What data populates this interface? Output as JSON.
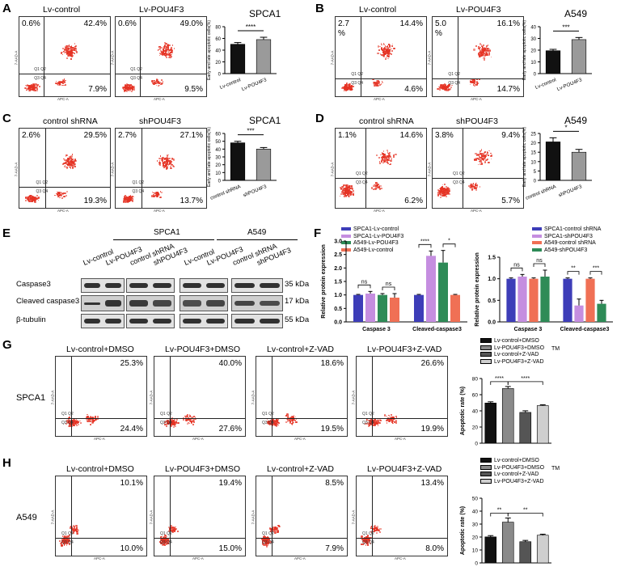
{
  "panels": {
    "A": {
      "letter": "A",
      "flow_titles": [
        "Lv-control",
        "Lv-POU4F3"
      ],
      "quads": [
        {
          "ul": "0.6%",
          "ur": "42.4%",
          "lr": "7.9%"
        },
        {
          "ul": "0.6%",
          "ur": "49.0%",
          "lr": "9.5%"
        }
      ],
      "bar_title": "SPCA1",
      "sig": "****"
    },
    "B": {
      "letter": "B",
      "flow_titles": [
        "Lv-control",
        "Lv-POU4F3"
      ],
      "quads": [
        {
          "ul": "2.7\n%",
          "ur": "14.4%",
          "lr": "4.6%"
        },
        {
          "ul": "5.0\n%",
          "ur": "16.1%",
          "lr": "14.7%"
        }
      ],
      "bar_title": "A549",
      "sig": "***"
    },
    "C": {
      "letter": "C",
      "flow_titles": [
        "control shRNA",
        "shPOU4F3"
      ],
      "quads": [
        {
          "ul": "2.6%",
          "ur": "29.5%",
          "lr": "19.3%"
        },
        {
          "ul": "2.7%",
          "ur": "27.1%",
          "lr": "13.7%"
        }
      ],
      "bar_title": "SPCA1",
      "sig": "***"
    },
    "D": {
      "letter": "D",
      "flow_titles": [
        "control shRNA",
        "shPOU4F3"
      ],
      "quads": [
        {
          "ul": "1.1%",
          "ur": "14.6%",
          "lr": "6.2%"
        },
        {
          "ul": "3.8%",
          "ur": "9.4%",
          "lr": "5.7%"
        }
      ],
      "bar_title": "A549",
      "sig": "*"
    },
    "E": {
      "letter": "E",
      "groups": [
        "SPCA1",
        "A549"
      ],
      "lanes": [
        "Lv-control",
        "Lv-POU4F3",
        "control shRNA",
        "shPOU4F3",
        "Lv-control",
        "Lv-POU4F3",
        "control shRNA",
        "shPOU4F3"
      ],
      "rows": [
        {
          "label": "Caspase3",
          "kda": "35 kDa"
        },
        {
          "label": "Cleaved caspase3",
          "kda": "17 kDa"
        },
        {
          "label": "β-tubulin",
          "kda": "55 kDa"
        }
      ]
    },
    "F": {
      "letter": "F",
      "legend_left": [
        "SPCA1-Lv-control",
        "SPCA1-Lv-POU4F3",
        "A549-Lv-POU4F3",
        "A549-Lv-control"
      ],
      "legend_right": [
        "SPCA1-control shRNA",
        "SPCA1-shPOU4F3",
        "A549-control shRNA",
        "A549-shPOU4F3"
      ],
      "sig_left": [
        "ns",
        "ns",
        "****",
        "*"
      ],
      "sig_right": [
        "ns",
        "ns",
        "**",
        "***"
      ]
    },
    "G": {
      "letter": "G",
      "row_label": "SPCA1",
      "flow_titles": [
        "Lv-control+DMSO",
        "Lv-POU4F3+DMSO",
        "Lv-control+Z-VAD",
        "Lv-POU4F3+Z-VAD"
      ],
      "quads": [
        {
          "ur": "25.3%",
          "lr": "24.4%"
        },
        {
          "ur": "40.0%",
          "lr": "27.6%"
        },
        {
          "ur": "18.6%",
          "lr": "19.5%"
        },
        {
          "ur": "26.6%",
          "lr": "19.9%"
        }
      ],
      "legend": [
        "Lv-control+DMSO",
        "Lv-POU4F3+DMSO",
        "Lv-control+Z-VAD",
        "Lv-POU4F3+Z-VAD"
      ],
      "tm": "TM",
      "sig": [
        "****",
        "****"
      ]
    },
    "H": {
      "letter": "H",
      "row_label": "A549",
      "flow_titles": [
        "Lv-control+DMSO",
        "Lv-POU4F3+DMSO",
        "Lv-control+Z-VAD",
        "Lv-POU4F3+Z-VAD"
      ],
      "quads": [
        {
          "ur": "10.1%",
          "lr": "10.0%"
        },
        {
          "ur": "19.4%",
          "lr": "15.0%"
        },
        {
          "ur": "8.5%",
          "lr": "7.9%"
        },
        {
          "ur": "13.4%",
          "lr": "8.0%"
        }
      ],
      "legend": [
        "Lv-control+DMSO",
        "Lv-POU4F3+DMSO",
        "Lv-control+Z-VAD",
        "Lv-POU4F3+Z-VAD"
      ],
      "tm": "TM",
      "sig": [
        "**",
        "**"
      ]
    }
  },
  "colors": {
    "dot": "#e53324",
    "bar_dark": "#111111",
    "bar_gray": "#9a9a9a",
    "blue": "#3d3db8",
    "violet": "#c58ee0",
    "green": "#2e8b57",
    "salmon": "#f07055",
    "g_black": "#111111",
    "g_mid": "#8a8a8a",
    "g_dark": "#555555",
    "g_light": "#cfcfcf"
  },
  "chart_data": [
    {
      "id": "A_bar",
      "type": "bar",
      "title": "SPCA1",
      "ylabel": "Early and late apoptotic cells(%)",
      "categories": [
        "Lv-control",
        "Lv-POU4F3"
      ],
      "values": [
        50,
        58
      ],
      "errors": [
        3,
        4
      ],
      "ylim": [
        0,
        80
      ],
      "yticks": [
        0,
        20,
        40,
        60,
        80
      ]
    },
    {
      "id": "B_bar",
      "type": "bar",
      "title": "A549",
      "ylabel": "Early and late apoptotic cells(%)",
      "categories": [
        "Lv-control",
        "Lv-POU4F3"
      ],
      "values": [
        19.5,
        29
      ],
      "errors": [
        1.2,
        1.8
      ],
      "ylim": [
        0,
        40
      ],
      "yticks": [
        0,
        10,
        20,
        30,
        40
      ]
    },
    {
      "id": "C_bar",
      "type": "bar",
      "title": "SPCA1",
      "ylabel": "Early and late apoptotic cells(%)",
      "categories": [
        "control shRNA",
        "shPOU4F3"
      ],
      "values": [
        48,
        40
      ],
      "errors": [
        2,
        2
      ],
      "ylim": [
        0,
        60
      ],
      "yticks": [
        0,
        10,
        20,
        30,
        40,
        50,
        60
      ]
    },
    {
      "id": "D_bar",
      "type": "bar",
      "title": "A549",
      "ylabel": "Early and late apoptotic cells(%)",
      "categories": [
        "control shRNA",
        "shPOU4F3"
      ],
      "values": [
        20.5,
        15
      ],
      "errors": [
        2.2,
        1.5
      ],
      "ylim": [
        0,
        25
      ],
      "yticks": [
        0,
        5,
        10,
        15,
        20,
        25
      ]
    },
    {
      "id": "F_left",
      "type": "bar",
      "ylabel": "Relative protein expression",
      "categories": [
        "Caspase 3",
        "Cleaved-caspase3"
      ],
      "series": [
        {
          "name": "SPCA1-Lv-control",
          "values": [
            1.0,
            1.0
          ]
        },
        {
          "name": "SPCA1-Lv-POU4F3",
          "values": [
            1.05,
            2.45
          ]
        },
        {
          "name": "A549-Lv-POU4F3",
          "values": [
            1.0,
            2.2
          ]
        },
        {
          "name": "A549-Lv-control",
          "values": [
            0.9,
            1.0
          ]
        }
      ],
      "errors": [
        [
          0.02,
          0.02
        ],
        [
          0.08,
          0.18
        ],
        [
          0.05,
          0.45
        ],
        [
          0.15,
          0.02
        ]
      ],
      "ylim": [
        0,
        3.0
      ],
      "yticks": [
        0,
        0.5,
        1.0,
        1.5,
        2.0,
        2.5,
        3.0
      ]
    },
    {
      "id": "F_right",
      "type": "bar",
      "ylabel": "Relative protein expression",
      "categories": [
        "Caspase 3",
        "Cleaved-caspase3"
      ],
      "series": [
        {
          "name": "SPCA1-control shRNA",
          "values": [
            1.0,
            1.0
          ]
        },
        {
          "name": "SPCA1-shPOU4F3",
          "values": [
            1.05,
            0.38
          ]
        },
        {
          "name": "A549-control shRNA",
          "values": [
            1.0,
            1.0
          ]
        },
        {
          "name": "A549-shPOU4F3",
          "values": [
            1.05,
            0.42
          ]
        }
      ],
      "errors": [
        [
          0.02,
          0.02
        ],
        [
          0.05,
          0.15
        ],
        [
          0.02,
          0.02
        ],
        [
          0.15,
          0.08
        ]
      ],
      "ylim": [
        0,
        1.5
      ],
      "yticks": [
        0,
        0.5,
        1.0,
        1.5
      ]
    },
    {
      "id": "G_bar",
      "type": "bar",
      "ylabel": "Apoptotic rate (%)",
      "categories": [
        "Lv-control+DMSO",
        "Lv-POU4F3+DMSO",
        "Lv-control+Z-VAD",
        "Lv-POU4F3+Z-VAD"
      ],
      "values": [
        49.7,
        67.6,
        38.1,
        46.5
      ],
      "errors": [
        1.5,
        2.5,
        2,
        1
      ],
      "ylim": [
        0,
        80
      ],
      "yticks": [
        0,
        20,
        40,
        60,
        80
      ]
    },
    {
      "id": "H_bar",
      "type": "bar",
      "ylabel": "Apoptotic rate (%)",
      "categories": [
        "Lv-control+DMSO",
        "Lv-POU4F3+DMSO",
        "Lv-control+Z-VAD",
        "Lv-POU4F3+Z-VAD"
      ],
      "values": [
        20.1,
        31.5,
        16.4,
        21.4
      ],
      "errors": [
        1,
        3.2,
        1,
        0.8
      ],
      "ylim": [
        0,
        50
      ],
      "yticks": [
        0,
        10,
        20,
        30,
        40,
        50
      ]
    }
  ]
}
